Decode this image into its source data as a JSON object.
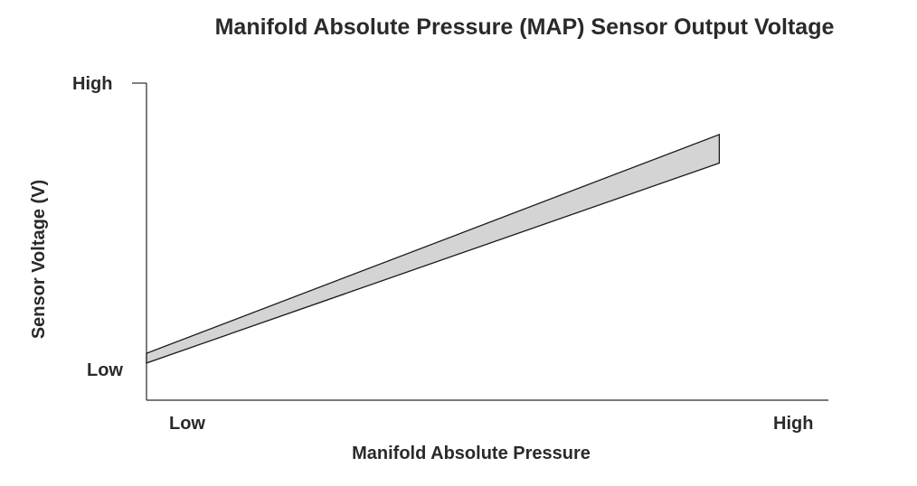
{
  "chart_data": {
    "type": "area",
    "title": "Manifold Absolute Pressure (MAP) Sensor Output Voltage",
    "xlabel": "Manifold Absolute Pressure",
    "ylabel": "Sensor Voltage (V)",
    "x_ticks": [
      "Low",
      "High"
    ],
    "y_ticks": [
      "Low",
      "High"
    ],
    "xlim": [
      0,
      1
    ],
    "ylim": [
      0,
      1
    ],
    "grid": false,
    "series": [
      {
        "x": [
          0.0,
          0.84
        ],
        "upper": [
          0.148,
          0.838
        ],
        "lower": [
          0.117,
          0.748
        ]
      }
    ],
    "colors": {
      "band_fill": "#d4d4d4",
      "band_stroke": "#1a1a1a",
      "axis": "#2a2a2a",
      "text": "#2a2a2a"
    }
  }
}
